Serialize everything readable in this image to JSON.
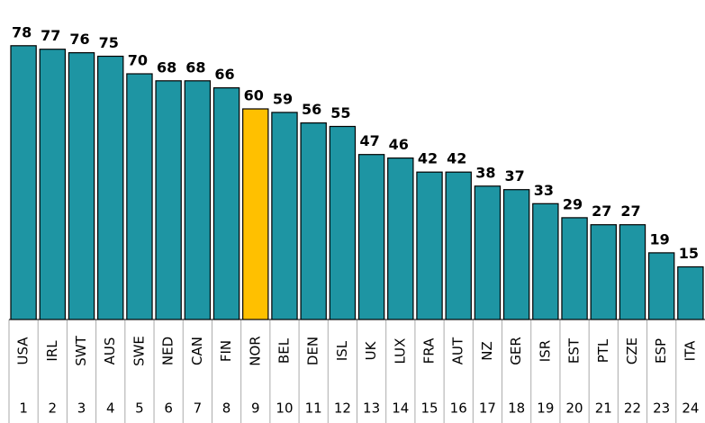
{
  "chart_data": {
    "type": "bar",
    "categories": [
      "USA",
      "IRL",
      "SWT",
      "AUS",
      "SWE",
      "NED",
      "CAN",
      "FIN",
      "NOR",
      "BEL",
      "DEN",
      "ISL",
      "UK",
      "LUX",
      "FRA",
      "AUT",
      "NZ",
      "GER",
      "ISR",
      "EST",
      "PTL",
      "CZE",
      "ESP",
      "ITA"
    ],
    "ranks": [
      1,
      2,
      3,
      4,
      5,
      6,
      7,
      8,
      9,
      10,
      11,
      12,
      13,
      14,
      15,
      16,
      17,
      18,
      19,
      20,
      21,
      22,
      23,
      24
    ],
    "values": [
      78,
      77,
      76,
      75,
      70,
      68,
      68,
      66,
      60,
      59,
      56,
      55,
      47,
      46,
      42,
      42,
      38,
      37,
      33,
      29,
      27,
      27,
      19,
      15
    ],
    "colors": [
      "#1e95a3",
      "#1e95a3",
      "#1e95a3",
      "#1e95a3",
      "#1e95a3",
      "#1e95a3",
      "#1e95a3",
      "#1e95a3",
      "#ffc000",
      "#1e95a3",
      "#1e95a3",
      "#1e95a3",
      "#1e95a3",
      "#1e95a3",
      "#1e95a3",
      "#1e95a3",
      "#1e95a3",
      "#1e95a3",
      "#1e95a3",
      "#1e95a3",
      "#1e95a3",
      "#1e95a3",
      "#1e95a3",
      "#1e95a3"
    ],
    "ylim": [
      0,
      90
    ]
  }
}
